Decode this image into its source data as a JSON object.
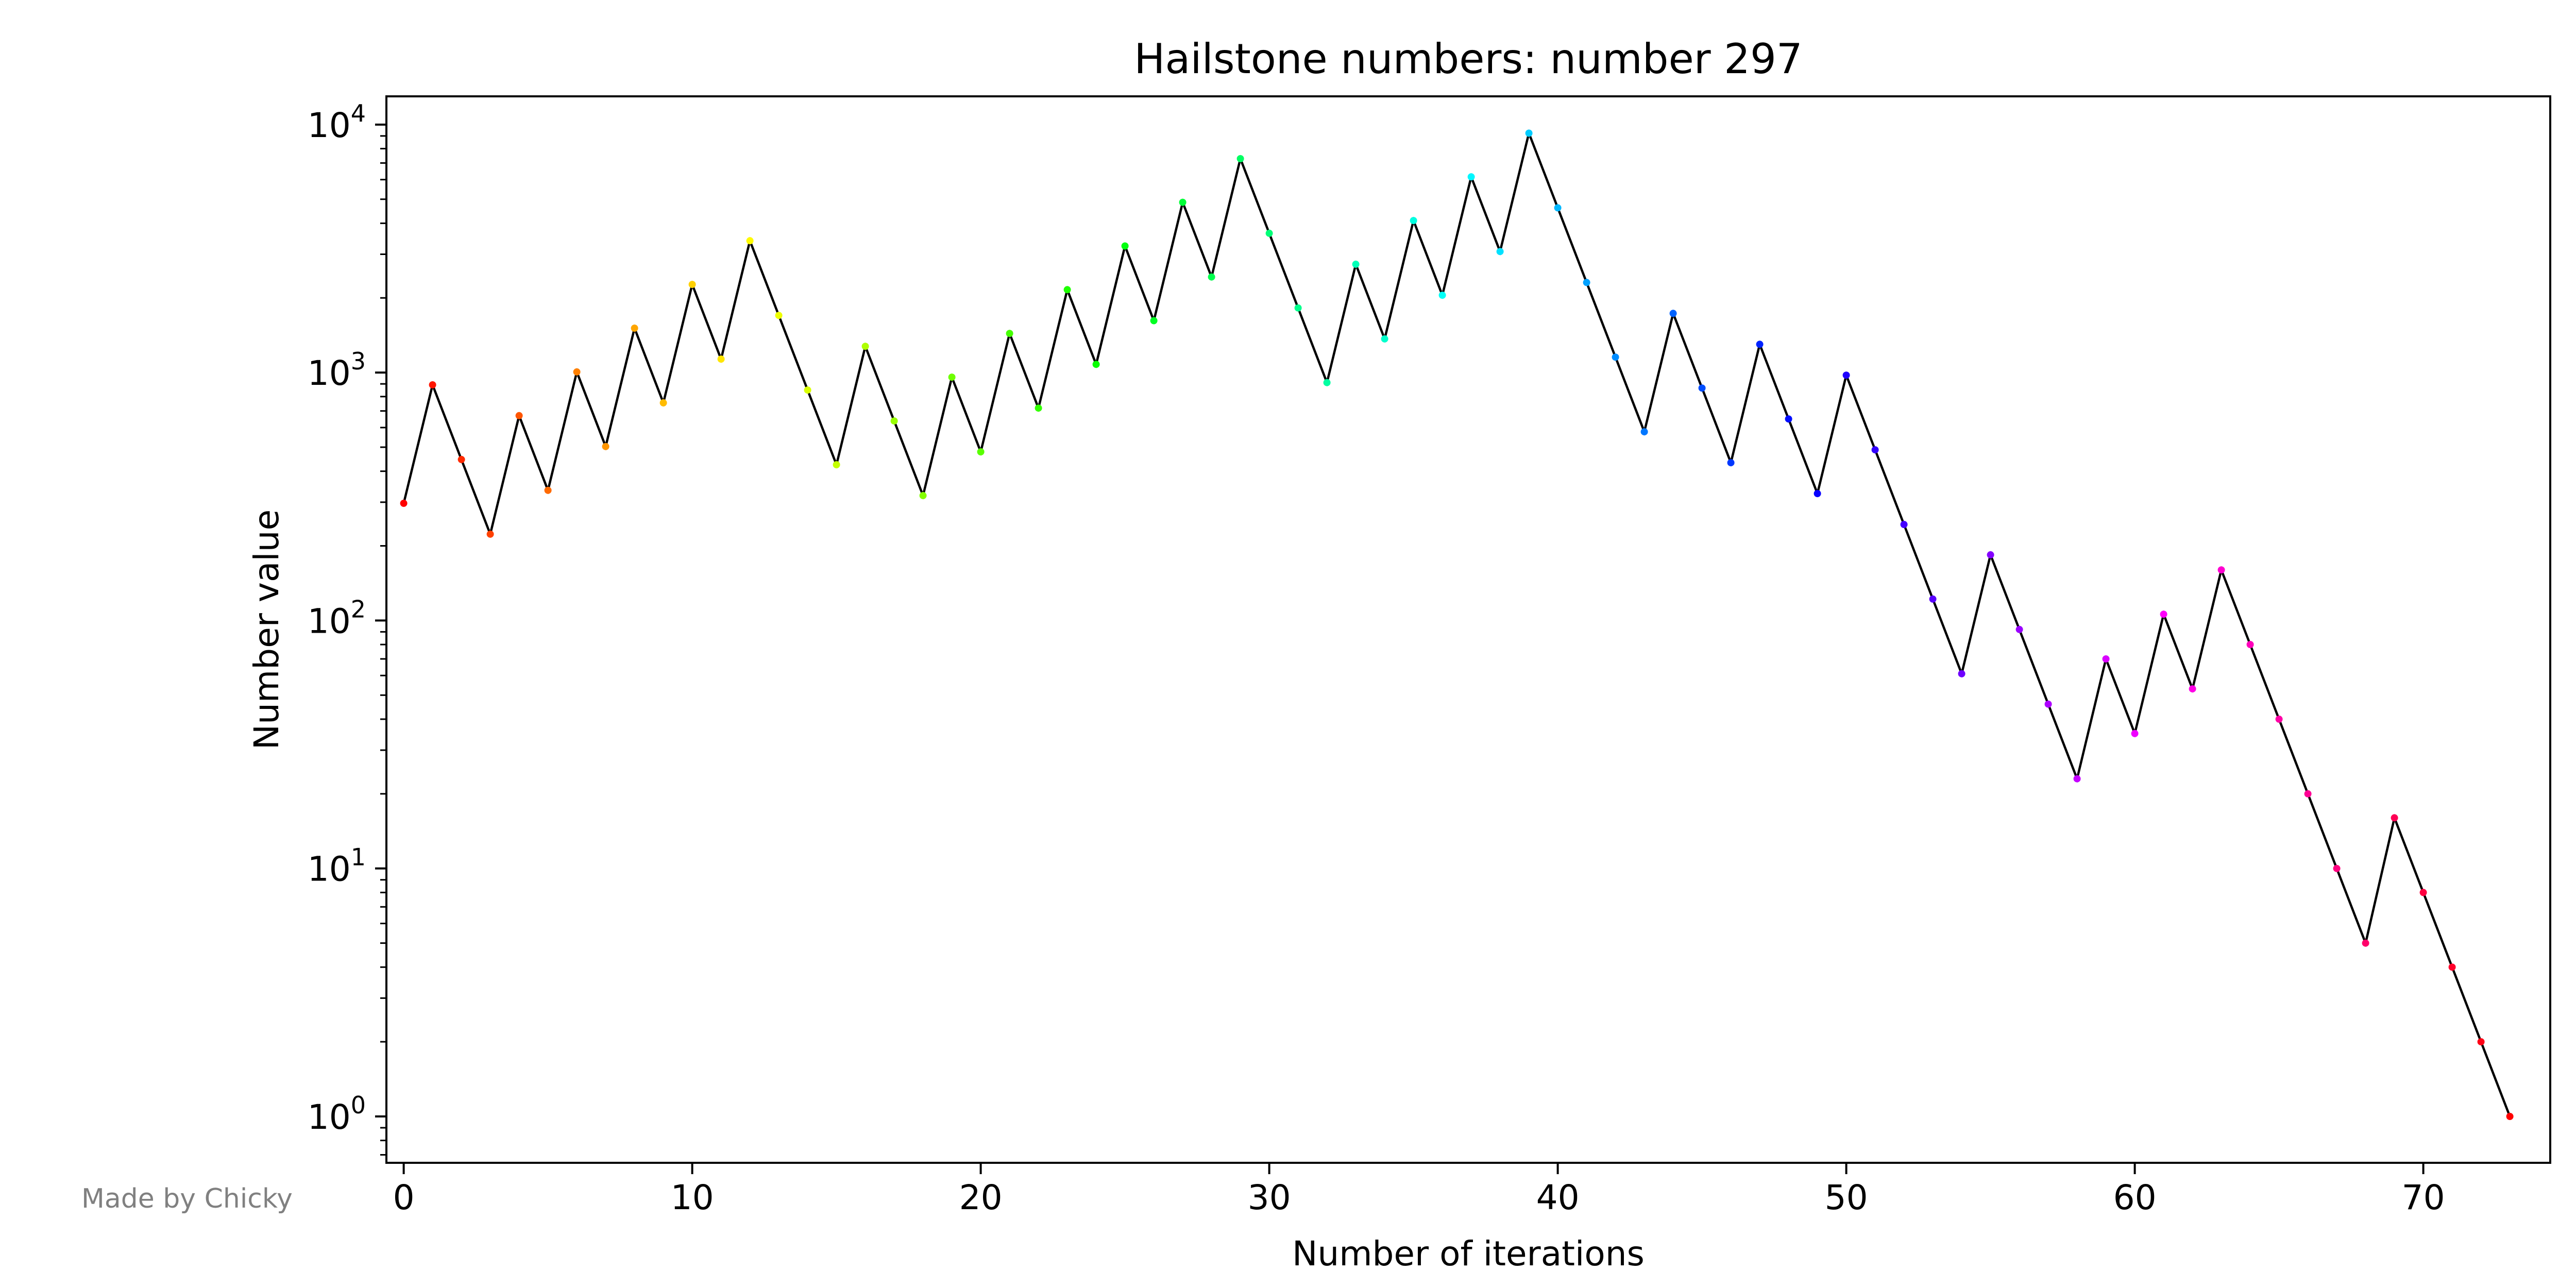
{
  "credit": "Made by Chicky",
  "chart_data": {
    "type": "line",
    "title": "Hailstone numbers: number 297",
    "xlabel": "Number of iterations",
    "ylabel": "Number value",
    "xlim": [
      -0.6,
      74.4
    ],
    "ylim": [
      0.65,
      13000
    ],
    "y_scale": "log",
    "grid": false,
    "legend": "none",
    "line_color": "#000000",
    "point_colors": "rainbow",
    "x_ticks": [
      0,
      10,
      20,
      30,
      40,
      50,
      60,
      70
    ],
    "y_ticks": [
      {
        "value": 1,
        "base": "10",
        "exp": "0"
      },
      {
        "value": 10,
        "base": "10",
        "exp": "1"
      },
      {
        "value": 100,
        "base": "10",
        "exp": "2"
      },
      {
        "value": 1000,
        "base": "10",
        "exp": "3"
      },
      {
        "value": 10000,
        "base": "10",
        "exp": "4"
      }
    ],
    "x": [
      0,
      1,
      2,
      3,
      4,
      5,
      6,
      7,
      8,
      9,
      10,
      11,
      12,
      13,
      14,
      15,
      16,
      17,
      18,
      19,
      20,
      21,
      22,
      23,
      24,
      25,
      26,
      27,
      28,
      29,
      30,
      31,
      32,
      33,
      34,
      35,
      36,
      37,
      38,
      39,
      40,
      41,
      42,
      43,
      44,
      45,
      46,
      47,
      48,
      49,
      50,
      51,
      52,
      53,
      54,
      55,
      56,
      57,
      58,
      59,
      60,
      61,
      62,
      63,
      64,
      65,
      66,
      67,
      68,
      69,
      70,
      71,
      72,
      73
    ],
    "values": [
      297,
      892,
      446,
      223,
      670,
      335,
      1006,
      503,
      1510,
      755,
      2266,
      1133,
      3400,
      1700,
      850,
      425,
      1276,
      638,
      319,
      958,
      479,
      1438,
      719,
      2158,
      1079,
      3238,
      1619,
      4858,
      2429,
      7288,
      3644,
      1822,
      911,
      2734,
      1367,
      4102,
      2051,
      6154,
      3077,
      9232,
      4616,
      2308,
      1154,
      577,
      1732,
      866,
      433,
      1300,
      650,
      325,
      976,
      488,
      244,
      122,
      61,
      184,
      92,
      46,
      23,
      70,
      35,
      106,
      53,
      160,
      80,
      40,
      20,
      10,
      5,
      16,
      8,
      4,
      2,
      1
    ]
  }
}
